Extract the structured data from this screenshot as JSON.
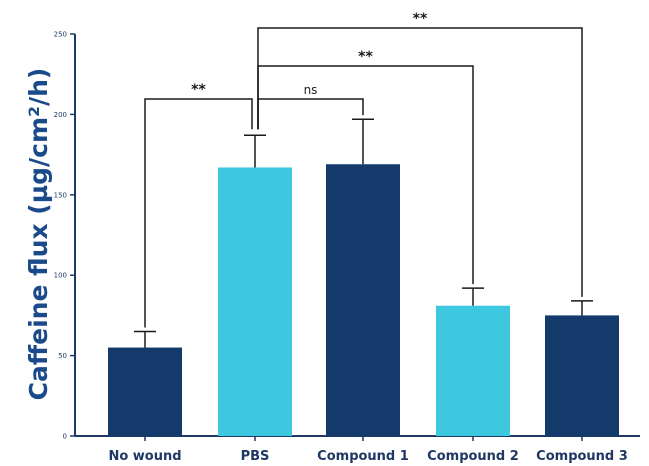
{
  "chart_data": {
    "type": "bar",
    "categories": [
      "No wound",
      "PBS",
      "Compound 1",
      "Compound 2",
      "Compound 3"
    ],
    "values": [
      55,
      167,
      169,
      81,
      75
    ],
    "errors": [
      10,
      20,
      28,
      11,
      9
    ],
    "bar_colors": [
      "#143a6b",
      "#3ec8e0",
      "#143a6b",
      "#3ec8e0",
      "#143a6b"
    ],
    "ylabel": "Caffeine flux (µg/cm²/h)",
    "ylim": [
      0,
      250
    ],
    "yticks": [
      "0",
      "50",
      "100",
      "150",
      "200",
      "250"
    ],
    "grid": false,
    "comparisons": [
      {
        "from": 1,
        "to": 0,
        "label": "**"
      },
      {
        "from": 1,
        "to": 2,
        "label": "ns"
      },
      {
        "from": 1,
        "to": 3,
        "label": "**"
      },
      {
        "from": 1,
        "to": 4,
        "label": "**"
      }
    ]
  }
}
